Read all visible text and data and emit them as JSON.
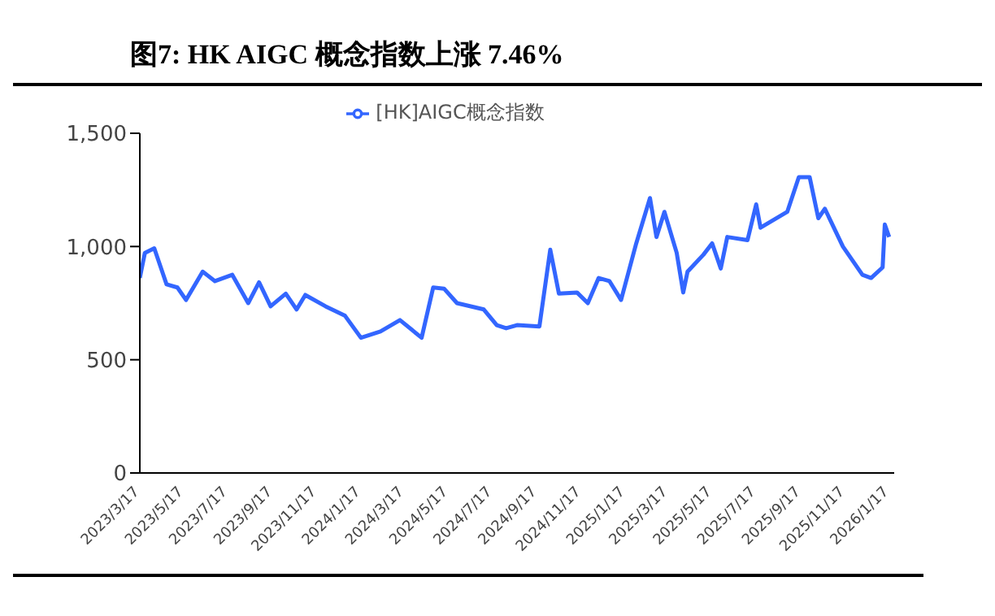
{
  "chart_data": {
    "type": "line",
    "title": "图7:  HK AIGC 概念指数上涨 7.46%",
    "x": [
      "2023-03-17",
      "2023-03-24",
      "2023-04-06",
      "2023-04-17",
      "2023-04-23",
      "2023-05-08",
      "2023-05-20",
      "2023-06-12",
      "2023-06-29",
      "2023-07-23",
      "2023-08-14",
      "2023-08-29",
      "2023-09-14",
      "2023-10-05",
      "2023-10-20",
      "2023-11-01",
      "2023-11-29",
      "2023-12-26",
      "2024-01-17",
      "2024-02-13",
      "2024-03-11",
      "2024-04-10",
      "2024-04-26",
      "2024-05-11",
      "2024-05-29",
      "2024-07-05",
      "2024-07-23",
      "2024-08-05",
      "2024-08-20",
      "2024-09-20",
      "2024-10-05",
      "2024-10-17",
      "2024-11-11",
      "2024-11-26",
      "2024-12-11",
      "2024-12-26",
      "2025-01-11",
      "2025-02-01",
      "2025-02-20",
      "2025-03-01",
      "2025-03-12",
      "2025-03-29",
      "2025-04-07",
      "2025-04-13",
      "2025-05-05",
      "2025-05-17",
      "2025-05-29",
      "2025-06-07",
      "2025-07-05",
      "2025-07-17",
      "2025-07-23",
      "2025-08-29",
      "2025-09-14",
      "2025-09-29",
      "2025-10-11",
      "2025-10-20",
      "2025-11-14",
      "2025-12-11",
      "2025-12-23",
      "2026-01-08",
      "2026-01-11",
      "2026-01-17"
    ],
    "series": [
      {
        "name": "[HK]AIGC概念指数",
        "color": "#3366ff",
        "values": [
          861,
          972,
          992,
          889,
          833,
          819,
          764,
          889,
          847,
          875,
          750,
          842,
          736,
          792,
          722,
          786,
          736,
          694,
          597,
          625,
          675,
          597,
          819,
          814,
          750,
          722,
          653,
          639,
          653,
          647,
          986,
          792,
          797,
          750,
          861,
          847,
          764,
          1014,
          1214,
          1042,
          1153,
          972,
          797,
          889,
          964,
          1014,
          903,
          1042,
          1028,
          1186,
          1083,
          1153,
          1306,
          1306,
          1125,
          1167,
          1000,
          875,
          861,
          908,
          1097,
          1042
        ]
      }
    ],
    "xlim": [
      "2023-03-17",
      "2026-01-24"
    ],
    "xticks": [
      {
        "value": "2023-03-17",
        "label": "2023/3/17"
      },
      {
        "value": "2023-05-17",
        "label": "2023/5/17"
      },
      {
        "value": "2023-07-17",
        "label": "2023/7/17"
      },
      {
        "value": "2023-09-17",
        "label": "2023/9/17"
      },
      {
        "value": "2023-11-17",
        "label": "2023/11/17"
      },
      {
        "value": "2024-01-17",
        "label": "2024/1/17"
      },
      {
        "value": "2024-03-17",
        "label": "2024/3/17"
      },
      {
        "value": "2024-05-17",
        "label": "2024/5/17"
      },
      {
        "value": "2024-07-17",
        "label": "2024/7/17"
      },
      {
        "value": "2024-09-17",
        "label": "2024/9/17"
      },
      {
        "value": "2024-11-17",
        "label": "2024/11/17"
      },
      {
        "value": "2025-01-17",
        "label": "2025/1/17"
      },
      {
        "value": "2025-03-17",
        "label": "2025/3/17"
      },
      {
        "value": "2025-05-17",
        "label": "2025/5/17"
      },
      {
        "value": "2025-07-17",
        "label": "2025/7/17"
      },
      {
        "value": "2025-09-17",
        "label": "2025/9/17"
      },
      {
        "value": "2025-11-17",
        "label": "2025/11/17"
      },
      {
        "value": "2026-01-17",
        "label": "2026/1/17"
      }
    ],
    "ylim": [
      0,
      1500
    ],
    "yticks": [
      0,
      500,
      {
        "value": 1000,
        "label": "1,000"
      },
      {
        "value": 1500,
        "label": "1,500"
      }
    ],
    "grid": false,
    "legend": "top",
    "line_style": "solid"
  }
}
